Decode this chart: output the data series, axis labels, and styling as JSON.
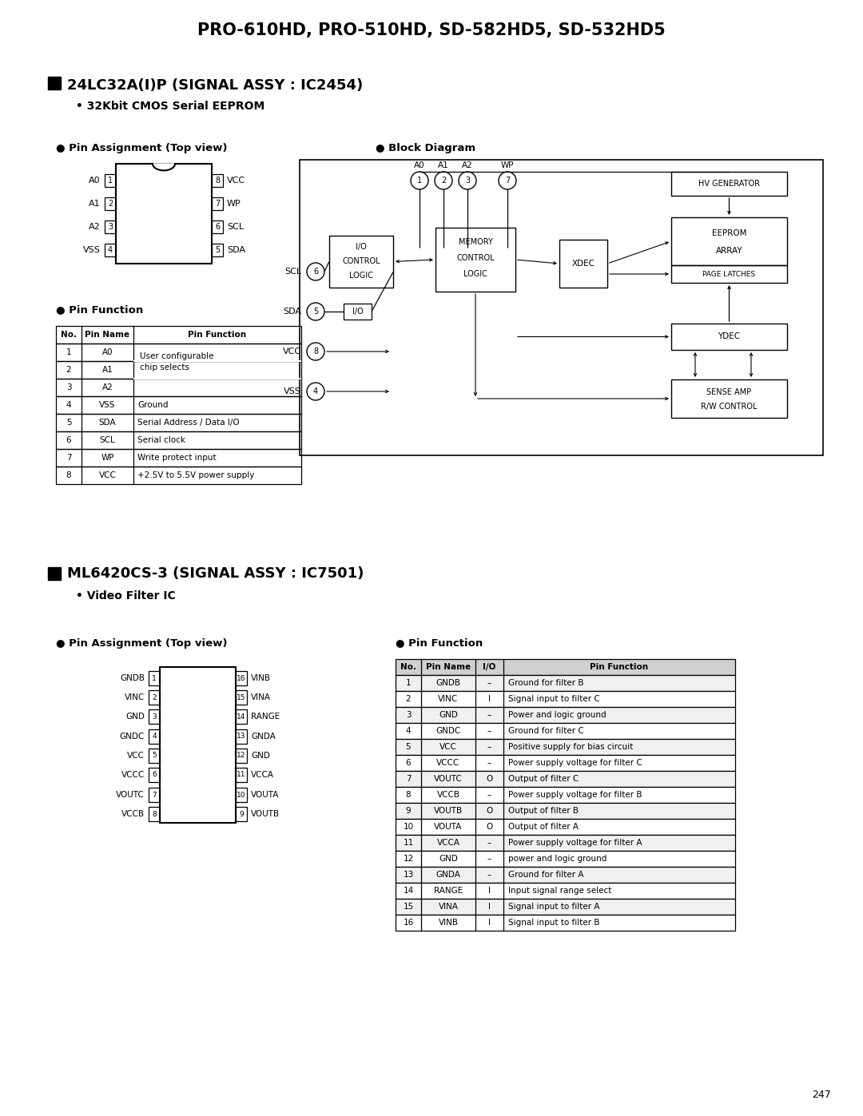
{
  "title": "PRO-610HD, PRO-510HD, SD-582HD5, SD-532HD5",
  "page_number": "247",
  "bg_color": "#ffffff",
  "section1_title": "24LC32A(I)P (SIGNAL ASSY : IC2454)",
  "section1_subtitle": "32Kbit CMOS Serial EEPROM",
  "section1_pin_title": "Pin Assignment (Top view)",
  "section1_block_title": "Block Diagram",
  "section1_left_pins": [
    "A0",
    "A1",
    "A2",
    "VSS"
  ],
  "section1_left_nums": [
    "1",
    "2",
    "3",
    "4"
  ],
  "section1_right_pins": [
    "VCC",
    "WP",
    "SCL",
    "SDA"
  ],
  "section1_right_nums": [
    "8",
    "7",
    "6",
    "5"
  ],
  "section1_pin_func_headers": [
    "No.",
    "Pin Name",
    "Pin Function"
  ],
  "section1_pin_func": [
    [
      "1",
      "A0",
      "User configurable\nchip selects"
    ],
    [
      "2",
      "A1",
      ""
    ],
    [
      "3",
      "A2",
      ""
    ],
    [
      "4",
      "VSS",
      "Ground"
    ],
    [
      "5",
      "SDA",
      "Serial Address / Data I/O"
    ],
    [
      "6",
      "SCL",
      "Serial clock"
    ],
    [
      "7",
      "WP",
      "Write protect input"
    ],
    [
      "8",
      "VCC",
      "+2.5V to 5.5V power supply"
    ]
  ],
  "section2_title": "ML6420CS-3 (SIGNAL ASSY : IC7501)",
  "section2_subtitle": "Video Filter IC",
  "section2_pin_title": "Pin Assignment (Top view)",
  "section2_pin_func_title": "Pin Function",
  "section2_left_pins": [
    "GNDB",
    "VINC",
    "GND",
    "GNDC",
    "VCC",
    "VCCC",
    "VOUTC",
    "VCCB"
  ],
  "section2_left_nums": [
    "1",
    "2",
    "3",
    "4",
    "5",
    "6",
    "7",
    "8"
  ],
  "section2_right_pins": [
    "VINB",
    "VINA",
    "RANGE",
    "GNDA",
    "GND",
    "VCCA",
    "VOUTA",
    "VOUTB"
  ],
  "section2_right_nums": [
    "16",
    "15",
    "14",
    "13",
    "12",
    "11",
    "10",
    "9"
  ],
  "section2_pin_func_headers": [
    "No.",
    "Pin Name",
    "I/O",
    "Pin Function"
  ],
  "section2_pin_func": [
    [
      "1",
      "GNDB",
      "–",
      "Ground for filter B"
    ],
    [
      "2",
      "VINC",
      "I",
      "Signal input to filter C"
    ],
    [
      "3",
      "GND",
      "–",
      "Power and logic ground"
    ],
    [
      "4",
      "GNDC",
      "–",
      "Ground for filter C"
    ],
    [
      "5",
      "VCC",
      "–",
      "Positive supply for bias circuit"
    ],
    [
      "6",
      "VCCC",
      "–",
      "Power supply voltage for filter C"
    ],
    [
      "7",
      "VOUTC",
      "O",
      "Output of filter C"
    ],
    [
      "8",
      "VCCB",
      "–",
      "Power supply voltage for filter B"
    ],
    [
      "9",
      "VOUTB",
      "O",
      "Output of filter B"
    ],
    [
      "10",
      "VOUTA",
      "O",
      "Output of filter A"
    ],
    [
      "11",
      "VCCA",
      "–",
      "Power supply voltage for filter A"
    ],
    [
      "12",
      "GND",
      "–",
      "power and logic ground"
    ],
    [
      "13",
      "GNDA",
      "–",
      "Ground for filter A"
    ],
    [
      "14",
      "RANGE",
      "I",
      "Input signal range select"
    ],
    [
      "15",
      "VINA",
      "I",
      "Signal input to filter A"
    ],
    [
      "16",
      "VINB",
      "I",
      "Signal input to filter B"
    ]
  ]
}
